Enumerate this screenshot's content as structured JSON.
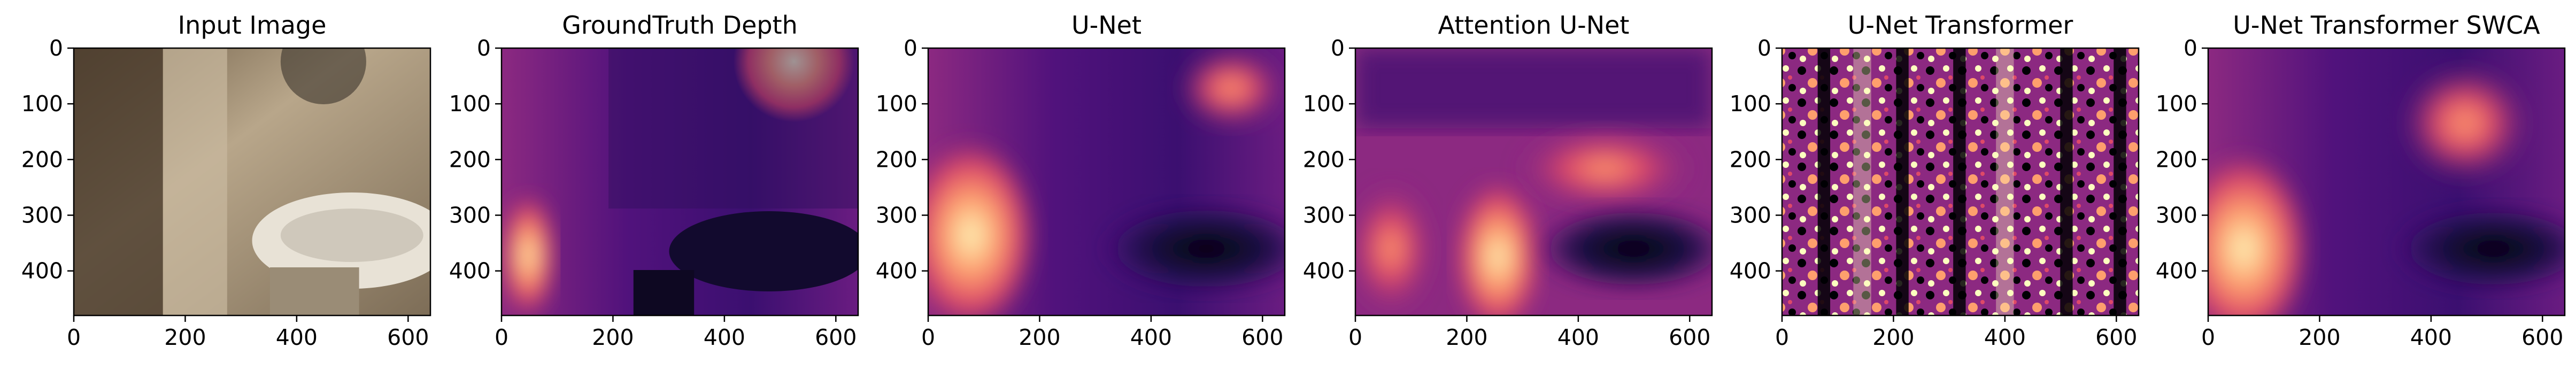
{
  "panels": [
    {
      "title": "Input Image",
      "kind": "photo"
    },
    {
      "title": "GroundTruth Depth",
      "kind": "depth-gt"
    },
    {
      "title": "U-Net",
      "kind": "depth-smooth"
    },
    {
      "title": "Attention U-Net",
      "kind": "depth-attn"
    },
    {
      "title": "U-Net Transformer",
      "kind": "depth-noise"
    },
    {
      "title": "U-Net Transformer SWCA",
      "kind": "depth-swca"
    }
  ],
  "axes": {
    "x_ticks": [
      "0",
      "200",
      "400",
      "600"
    ],
    "y_ticks": [
      "0",
      "100",
      "200",
      "300",
      "400"
    ],
    "x_values": [
      0,
      200,
      400,
      600
    ],
    "y_values": [
      0,
      100,
      200,
      300,
      400
    ],
    "x_range": [
      0,
      640
    ],
    "y_range": [
      0,
      480
    ],
    "colormap": "magma"
  }
}
